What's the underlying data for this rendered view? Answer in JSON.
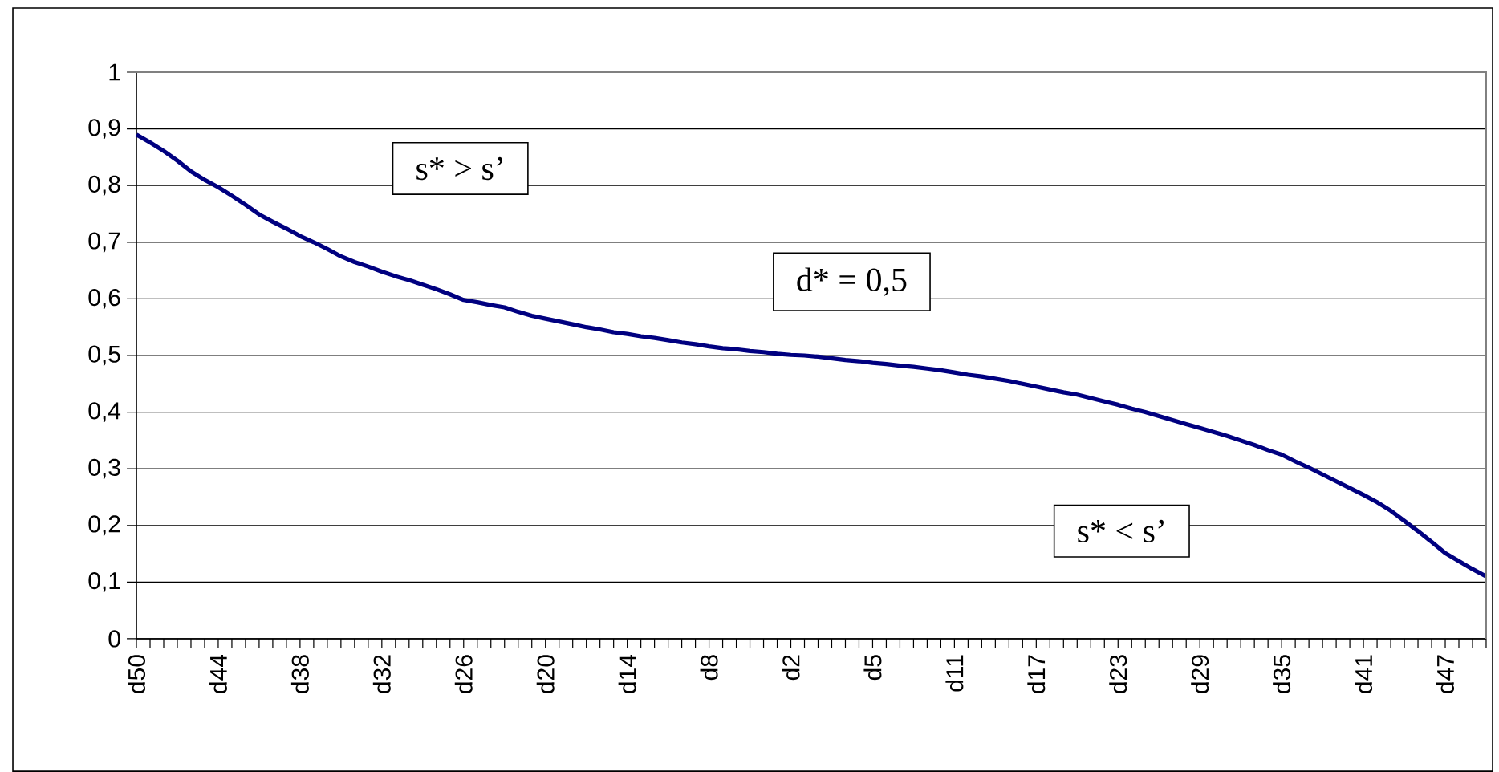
{
  "chart_data": {
    "type": "line",
    "categories": [
      "d50",
      null,
      null,
      null,
      null,
      null,
      "d44",
      null,
      null,
      null,
      null,
      null,
      "d38",
      null,
      null,
      null,
      null,
      null,
      "d32",
      null,
      null,
      null,
      null,
      null,
      "d26",
      null,
      null,
      null,
      null,
      null,
      "d20",
      null,
      null,
      null,
      null,
      null,
      "d14",
      null,
      null,
      null,
      null,
      null,
      "d8",
      null,
      null,
      null,
      null,
      null,
      "d2",
      null,
      null,
      null,
      null,
      null,
      "d5",
      null,
      null,
      null,
      null,
      null,
      "d11",
      null,
      null,
      null,
      null,
      null,
      "d17",
      null,
      null,
      null,
      null,
      null,
      "d23",
      null,
      null,
      null,
      null,
      null,
      "d29",
      null,
      null,
      null,
      null,
      null,
      "d35",
      null,
      null,
      null,
      null,
      null,
      "d41",
      null,
      null,
      null,
      null,
      null,
      "d47",
      null,
      null,
      null
    ],
    "series": [
      {
        "color": "#000080",
        "values": [
          0.89,
          0.876,
          0.861,
          0.844,
          0.825,
          0.81,
          0.797,
          0.782,
          0.766,
          0.749,
          0.736,
          0.724,
          0.711,
          0.7,
          0.688,
          0.675,
          0.665,
          0.657,
          0.648,
          0.64,
          0.633,
          0.625,
          0.617,
          0.608,
          0.598,
          0.594,
          0.589,
          0.585,
          0.577,
          0.57,
          0.565,
          0.56,
          0.555,
          0.55,
          0.546,
          0.541,
          0.538,
          0.534,
          0.531,
          0.527,
          0.523,
          0.52,
          0.516,
          0.513,
          0.511,
          0.508,
          0.506,
          0.503,
          0.501,
          0.5,
          0.498,
          0.495,
          0.492,
          0.49,
          0.487,
          0.485,
          0.482,
          0.48,
          0.477,
          0.474,
          0.47,
          0.466,
          0.463,
          0.459,
          0.455,
          0.45,
          0.445,
          0.44,
          0.435,
          0.431,
          0.425,
          0.419,
          0.413,
          0.406,
          0.4,
          0.393,
          0.386,
          0.379,
          0.372,
          0.365,
          0.358,
          0.35,
          0.342,
          0.333,
          0.325,
          0.313,
          0.302,
          0.29,
          0.278,
          0.266,
          0.254,
          0.241,
          0.226,
          0.208,
          0.19,
          0.171,
          0.151,
          0.137,
          0.123,
          0.11
        ]
      }
    ],
    "ylim": [
      0,
      1
    ],
    "yticks": [
      0,
      {
        "value": 0.1,
        "label": "0,1"
      },
      {
        "value": 0.2,
        "label": "0,2"
      },
      {
        "value": 0.3,
        "label": "0,3"
      },
      {
        "value": 0.4,
        "label": "0,4"
      },
      {
        "value": 0.5,
        "label": "0,5"
      },
      {
        "value": 0.6,
        "label": "0,6"
      },
      {
        "value": 0.7,
        "label": "0,7"
      },
      {
        "value": 0.8,
        "label": "0,8"
      },
      {
        "value": 0.9,
        "label": "0,9"
      },
      1
    ],
    "grid": "y",
    "marker": "none",
    "line_style": "solid",
    "annotations": [
      "s* > s’",
      "d* = 0,5",
      "s* < s’"
    ]
  }
}
